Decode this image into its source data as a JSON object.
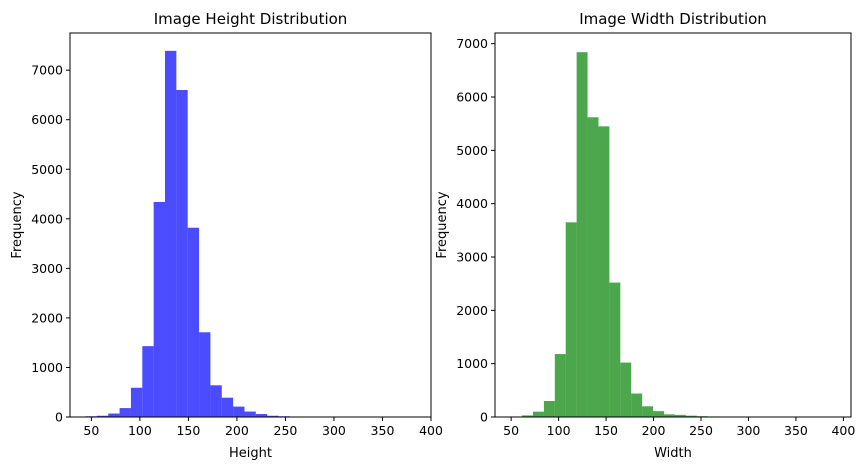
{
  "chart_data": [
    {
      "type": "bar",
      "title": "Image Height Distribution",
      "xlabel": "Height",
      "ylabel": "Frequency",
      "color": "#0000ff",
      "opacity": 0.7,
      "xlim": [
        28,
        400
      ],
      "ylim": [
        0,
        7750
      ],
      "xticks": [
        50,
        100,
        150,
        200,
        250,
        300,
        350,
        400
      ],
      "yticks": [
        0,
        1000,
        2000,
        3000,
        4000,
        5000,
        6000,
        7000
      ],
      "grid": false,
      "bins": [
        {
          "x0": 44,
          "x1": 55.7,
          "value": 15
        },
        {
          "x0": 55.7,
          "x1": 67.4,
          "value": 25
        },
        {
          "x0": 67.4,
          "x1": 79.1,
          "value": 70
        },
        {
          "x0": 79.1,
          "x1": 90.8,
          "value": 180
        },
        {
          "x0": 90.8,
          "x1": 102.5,
          "value": 590
        },
        {
          "x0": 102.5,
          "x1": 114.2,
          "value": 1430
        },
        {
          "x0": 114.2,
          "x1": 125.9,
          "value": 4340
        },
        {
          "x0": 125.9,
          "x1": 137.6,
          "value": 7390
        },
        {
          "x0": 137.6,
          "x1": 149.3,
          "value": 6600
        },
        {
          "x0": 149.3,
          "x1": 161.0,
          "value": 3820
        },
        {
          "x0": 161.0,
          "x1": 172.7,
          "value": 1710
        },
        {
          "x0": 172.7,
          "x1": 184.4,
          "value": 640
        },
        {
          "x0": 184.4,
          "x1": 196.1,
          "value": 390
        },
        {
          "x0": 196.1,
          "x1": 207.8,
          "value": 210
        },
        {
          "x0": 207.8,
          "x1": 219.5,
          "value": 110
        },
        {
          "x0": 219.5,
          "x1": 231.2,
          "value": 60
        },
        {
          "x0": 231.2,
          "x1": 242.9,
          "value": 25
        },
        {
          "x0": 242.9,
          "x1": 254.6,
          "value": 15
        },
        {
          "x0": 254.6,
          "x1": 266.3,
          "value": 8
        },
        {
          "x0": 266.3,
          "x1": 278.0,
          "value": 5
        },
        {
          "x0": 278.0,
          "x1": 289.7,
          "value": 3
        },
        {
          "x0": 289.7,
          "x1": 301.4,
          "value": 2
        },
        {
          "x0": 301.4,
          "x1": 313.1,
          "value": 2
        },
        {
          "x0": 313.1,
          "x1": 324.8,
          "value": 1
        },
        {
          "x0": 324.8,
          "x1": 336.5,
          "value": 1
        },
        {
          "x0": 336.5,
          "x1": 348.2,
          "value": 1
        },
        {
          "x0": 348.2,
          "x1": 359.9,
          "value": 1
        },
        {
          "x0": 359.9,
          "x1": 371.6,
          "value": 1
        },
        {
          "x0": 371.6,
          "x1": 383.3,
          "value": 1
        },
        {
          "x0": 383.3,
          "x1": 395.0,
          "value": 1
        }
      ]
    },
    {
      "type": "bar",
      "title": "Image Width Distribution",
      "xlabel": "Width",
      "ylabel": "Frequency",
      "color": "#008000",
      "opacity": 0.7,
      "xlim": [
        33,
        408
      ],
      "ylim": [
        0,
        7200
      ],
      "xticks": [
        50,
        100,
        150,
        200,
        250,
        300,
        350,
        400
      ],
      "yticks": [
        0,
        1000,
        2000,
        3000,
        4000,
        5000,
        6000,
        7000
      ],
      "grid": false,
      "bins": [
        {
          "x0": 50,
          "x1": 61.5,
          "value": 10
        },
        {
          "x0": 61.5,
          "x1": 73.0,
          "value": 30
        },
        {
          "x0": 73.0,
          "x1": 84.5,
          "value": 100
        },
        {
          "x0": 84.5,
          "x1": 96.0,
          "value": 300
        },
        {
          "x0": 96.0,
          "x1": 107.5,
          "value": 1180
        },
        {
          "x0": 107.5,
          "x1": 119.0,
          "value": 3650
        },
        {
          "x0": 119.0,
          "x1": 130.5,
          "value": 6840
        },
        {
          "x0": 130.5,
          "x1": 142.0,
          "value": 5620
        },
        {
          "x0": 142.0,
          "x1": 153.5,
          "value": 5450
        },
        {
          "x0": 153.5,
          "x1": 165.0,
          "value": 2520
        },
        {
          "x0": 165.0,
          "x1": 176.5,
          "value": 1020
        },
        {
          "x0": 176.5,
          "x1": 188.0,
          "value": 440
        },
        {
          "x0": 188.0,
          "x1": 199.5,
          "value": 200
        },
        {
          "x0": 199.5,
          "x1": 211.0,
          "value": 110
        },
        {
          "x0": 211.0,
          "x1": 222.5,
          "value": 50
        },
        {
          "x0": 222.5,
          "x1": 234.0,
          "value": 40
        },
        {
          "x0": 234.0,
          "x1": 245.5,
          "value": 25
        },
        {
          "x0": 245.5,
          "x1": 257.0,
          "value": 15
        },
        {
          "x0": 257.0,
          "x1": 268.5,
          "value": 10
        },
        {
          "x0": 268.5,
          "x1": 280.0,
          "value": 5
        },
        {
          "x0": 280.0,
          "x1": 291.5,
          "value": 3
        },
        {
          "x0": 291.5,
          "x1": 303.0,
          "value": 2
        },
        {
          "x0": 303.0,
          "x1": 314.5,
          "value": 2
        },
        {
          "x0": 314.5,
          "x1": 326.0,
          "value": 1
        },
        {
          "x0": 326.0,
          "x1": 337.5,
          "value": 1
        },
        {
          "x0": 337.5,
          "x1": 349.0,
          "value": 1
        },
        {
          "x0": 349.0,
          "x1": 360.5,
          "value": 1
        },
        {
          "x0": 360.5,
          "x1": 372.0,
          "value": 1
        },
        {
          "x0": 372.0,
          "x1": 383.5,
          "value": 1
        },
        {
          "x0": 383.5,
          "x1": 395.0,
          "value": 1
        }
      ]
    }
  ]
}
